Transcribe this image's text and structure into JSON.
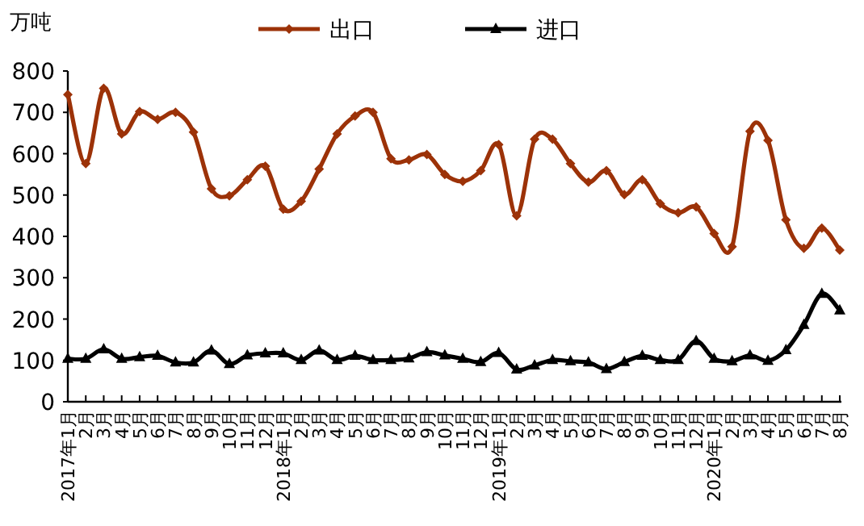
{
  "chart_data": {
    "type": "line",
    "ylabel": "万吨",
    "categories": [
      "2017年1月",
      "2月",
      "3月",
      "4月",
      "5月",
      "6月",
      "7月",
      "8月",
      "9月",
      "10月",
      "11月",
      "12月",
      "2018年1月",
      "2月",
      "3月",
      "4月",
      "5月",
      "6月",
      "7月",
      "8月",
      "9月",
      "10月",
      "11月",
      "12月",
      "2019年1月",
      "2月",
      "3月",
      "4月",
      "5月",
      "6月",
      "7月",
      "8月",
      "9月",
      "10月",
      "11月",
      "12月",
      "2020年1月",
      "2月",
      "3月",
      "4月",
      "5月",
      "6月",
      "7月",
      "8月"
    ],
    "series": [
      {
        "name": "出口",
        "color": "#9c3208",
        "marker": "diamond",
        "values": [
          743,
          576,
          758,
          648,
          702,
          683,
          700,
          652,
          515,
          498,
          537,
          570,
          466,
          485,
          563,
          648,
          691,
          700,
          588,
          585,
          598,
          550,
          533,
          559,
          622,
          450,
          635,
          635,
          576,
          531,
          559,
          501,
          537,
          479,
          457,
          471,
          407,
          375,
          654,
          632,
          440,
          371,
          420,
          367
        ]
      },
      {
        "name": "进口",
        "color": "#000000",
        "marker": "triangle",
        "values": [
          104,
          104,
          127,
          104,
          108,
          111,
          95,
          95,
          124,
          91,
          112,
          117,
          117,
          101,
          124,
          101,
          111,
          101,
          101,
          105,
          120,
          112,
          104,
          96,
          118,
          78,
          88,
          101,
          98,
          95,
          79,
          96,
          111,
          101,
          101,
          147,
          104,
          98,
          112,
          99,
          125,
          186,
          261,
          221
        ]
      }
    ],
    "ylim": [
      0,
      800
    ],
    "yticks": [
      0,
      100,
      200,
      300,
      400,
      500,
      600,
      700,
      800
    ],
    "legend": "top"
  }
}
